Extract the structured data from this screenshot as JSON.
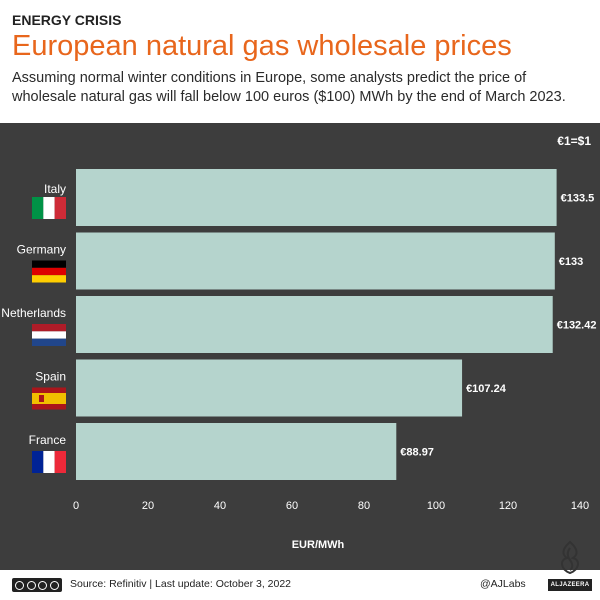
{
  "header": {
    "kicker": "ENERGY CRISIS",
    "title": "European natural gas wholesale prices",
    "subtitle": "Assuming normal winter conditions in Europe, some analysts predict the price of wholesale natural gas will fall below 100 euros ($100) MWh by the end of March 2023."
  },
  "chart_data": {
    "type": "bar",
    "orientation": "horizontal",
    "categories": [
      "Italy",
      "Germany",
      "Netherlands",
      "Spain",
      "France"
    ],
    "values": [
      133.5,
      133,
      132.42,
      107.24,
      88.97
    ],
    "value_labels": [
      "€133.5",
      "€133",
      "€132.42",
      "€107.24",
      "€88.97"
    ],
    "xlabel": "EUR/MWh",
    "xlim": [
      0,
      140
    ],
    "xticks": [
      0,
      20,
      40,
      60,
      80,
      100,
      120,
      140
    ],
    "note": "€1=$1",
    "bar_color": "#b5d4cd",
    "background_color": "#3d3d3d",
    "grid": false
  },
  "flags": [
    "italy-flag-icon",
    "germany-flag-icon",
    "netherlands-flag-icon",
    "spain-flag-icon",
    "france-flag-icon"
  ],
  "footer": {
    "license_icon": "creative-commons-icon",
    "source": "Source: Refinitiv | Last update: October 3, 2022",
    "credit": "@AJLabs",
    "logo_text": "ALJAZEERA"
  }
}
